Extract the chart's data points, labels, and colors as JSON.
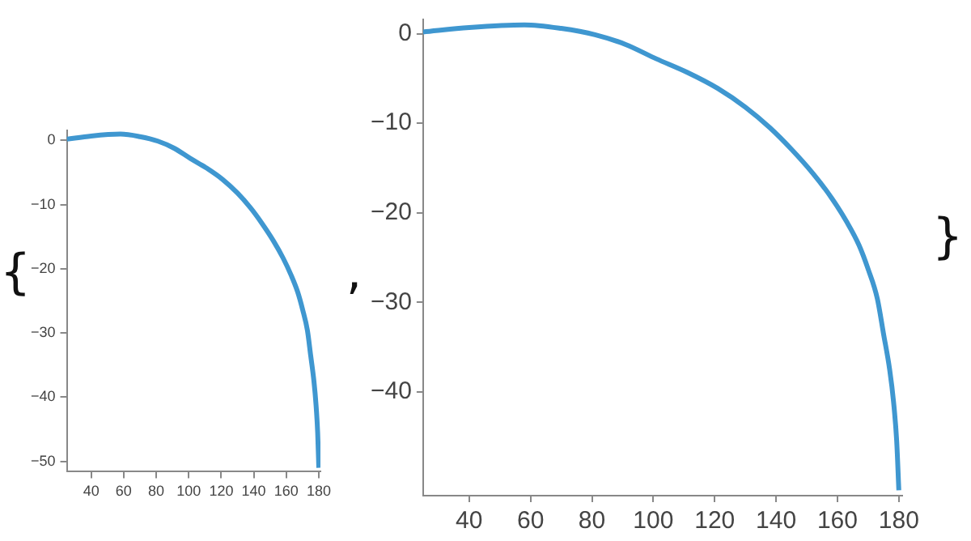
{
  "chart_data": [
    {
      "type": "line",
      "x": [
        25,
        40,
        58,
        70,
        81,
        91,
        101,
        111,
        121,
        130,
        138,
        145,
        152,
        158,
        163,
        167,
        170,
        173,
        175,
        177,
        178.3,
        179.3,
        180
      ],
      "values": [
        0.2,
        0.7,
        1,
        0.6,
        -0.1,
        -1.2,
        -2.8,
        -4.3,
        -6.1,
        -8.2,
        -10.5,
        -12.9,
        -15.6,
        -18.3,
        -21,
        -23.6,
        -26.3,
        -29.6,
        -33.5,
        -37.5,
        -41.2,
        -45.5,
        -51
      ],
      "color": "#3f97d0",
      "xlim": [
        25,
        181
      ],
      "ylim": [
        -51.6,
        1.6
      ],
      "xticks": [
        40,
        60,
        80,
        100,
        120,
        140,
        160,
        180
      ],
      "yticks": [
        0,
        -10,
        -20,
        -30,
        -40,
        -50
      ],
      "grid": false,
      "marker": "none",
      "annotations": [
        "{",
        ","
      ]
    },
    {
      "type": "line",
      "x": [
        25,
        40,
        58,
        70,
        81,
        91,
        101,
        111,
        121,
        130,
        138,
        145,
        152,
        158,
        163,
        167,
        170,
        173,
        175,
        177,
        178.3,
        179.3,
        180
      ],
      "values": [
        0.2,
        0.7,
        1,
        0.6,
        -0.1,
        -1.2,
        -2.8,
        -4.3,
        -6.1,
        -8.2,
        -10.5,
        -12.9,
        -15.6,
        -18.3,
        -21,
        -23.6,
        -26.3,
        -29.6,
        -33.5,
        -37.5,
        -41.2,
        -45.5,
        -51
      ],
      "color": "#3f97d0",
      "xlim": [
        25,
        181
      ],
      "ylim": [
        -51.6,
        1.6
      ],
      "xticks": [
        40,
        60,
        80,
        100,
        120,
        140,
        160,
        180
      ],
      "yticks": [
        0,
        -10,
        -20,
        -30,
        -40
      ],
      "grid": false,
      "marker": "none",
      "annotations": [
        "}"
      ]
    }
  ]
}
